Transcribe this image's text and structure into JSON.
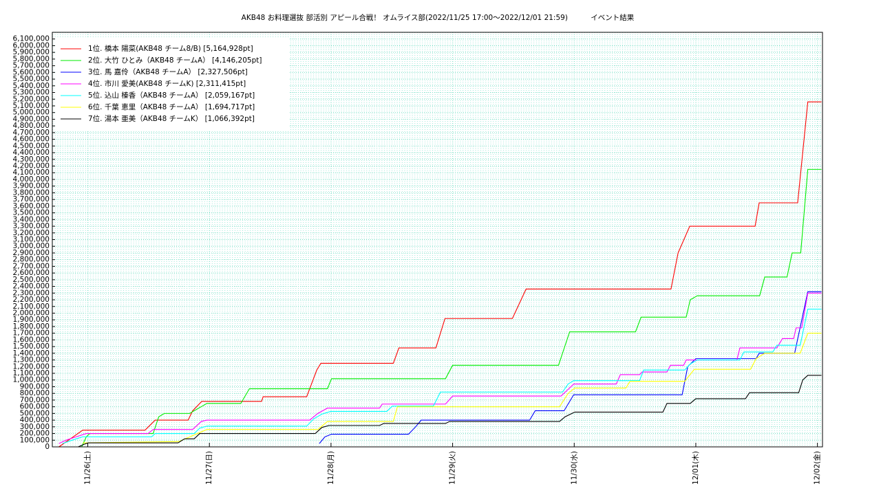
{
  "chart_data": {
    "type": "line",
    "title": "AKB48 お料理選抜 部活別 アピール合戦！ オムライス部(2022/11/25 17:00～2022/12/01 21:59)          イベント結果",
    "xlim": [
      0,
      152
    ],
    "xticks": [
      {
        "value": 7,
        "label": "11/26(土)"
      },
      {
        "value": 31,
        "label": "11/27(日)"
      },
      {
        "value": 55,
        "label": "11/28(月)"
      },
      {
        "value": 79,
        "label": "11/29(火)"
      },
      {
        "value": 103,
        "label": "11/30(水)"
      },
      {
        "value": 127,
        "label": "12/01(木)"
      },
      {
        "value": 151,
        "label": "12/02(金)"
      }
    ],
    "ylim": [
      0,
      6200000
    ],
    "yticks": [
      0,
      {
        "value": 100000,
        "label": "100,000"
      },
      {
        "value": 200000,
        "label": "200,000"
      },
      {
        "value": 300000,
        "label": "300,000"
      },
      {
        "value": 400000,
        "label": "400,000"
      },
      {
        "value": 500000,
        "label": "500,000"
      },
      {
        "value": 600000,
        "label": "600,000"
      },
      {
        "value": 700000,
        "label": "700,000"
      },
      {
        "value": 800000,
        "label": "800,000"
      },
      {
        "value": 900000,
        "label": "900,000"
      },
      {
        "value": 1000000,
        "label": "1,000,000"
      },
      {
        "value": 1100000,
        "label": "1,100,000"
      },
      {
        "value": 1200000,
        "label": "1,200,000"
      },
      {
        "value": 1300000,
        "label": "1,300,000"
      },
      {
        "value": 1400000,
        "label": "1,400,000"
      },
      {
        "value": 1500000,
        "label": "1,500,000"
      },
      {
        "value": 1600000,
        "label": "1,600,000"
      },
      {
        "value": 1700000,
        "label": "1,700,000"
      },
      {
        "value": 1800000,
        "label": "1,800,000"
      },
      {
        "value": 1900000,
        "label": "1,900,000"
      },
      {
        "value": 2000000,
        "label": "2,000,000"
      },
      {
        "value": 2100000,
        "label": "2,100,000"
      },
      {
        "value": 2200000,
        "label": "2,200,000"
      },
      {
        "value": 2300000,
        "label": "2,300,000"
      },
      {
        "value": 2400000,
        "label": "2,400,000"
      },
      {
        "value": 2500000,
        "label": "2,500,000"
      },
      {
        "value": 2600000,
        "label": "2,600,000"
      },
      {
        "value": 2700000,
        "label": "2,700,000"
      },
      {
        "value": 2800000,
        "label": "2,800,000"
      },
      {
        "value": 2900000,
        "label": "2,900,000"
      },
      {
        "value": 3000000,
        "label": "3,000,000"
      },
      {
        "value": 3100000,
        "label": "3,100,000"
      },
      {
        "value": 3200000,
        "label": "3,200,000"
      },
      {
        "value": 3300000,
        "label": "3,300,000"
      },
      {
        "value": 3400000,
        "label": "3,400,000"
      },
      {
        "value": 3500000,
        "label": "3,500,000"
      },
      {
        "value": 3600000,
        "label": "3,600,000"
      },
      {
        "value": 3700000,
        "label": "3,700,000"
      },
      {
        "value": 3800000,
        "label": "3,800,000"
      },
      {
        "value": 3900000,
        "label": "3,900,000"
      },
      {
        "value": 4000000,
        "label": "4,000,000"
      },
      {
        "value": 4100000,
        "label": "4,100,000"
      },
      {
        "value": 4200000,
        "label": "4,200,000"
      },
      {
        "value": 4300000,
        "label": "4,300,000"
      },
      {
        "value": 4400000,
        "label": "4,400,000"
      },
      {
        "value": 4500000,
        "label": "4,500,000"
      },
      {
        "value": 4600000,
        "label": "4,600,000"
      },
      {
        "value": 4700000,
        "label": "4,700,000"
      },
      {
        "value": 4800000,
        "label": "4,800,000"
      },
      {
        "value": 4900000,
        "label": "4,900,000"
      },
      {
        "value": 5000000,
        "label": "5,000,000"
      },
      {
        "value": 5100000,
        "label": "5,100,000"
      },
      {
        "value": 5200000,
        "label": "5,200,000"
      },
      {
        "value": 5300000,
        "label": "5,300,000"
      },
      {
        "value": 5400000,
        "label": "5,400,000"
      },
      {
        "value": 5500000,
        "label": "5,500,000"
      },
      {
        "value": 5600000,
        "label": "5,600,000"
      },
      {
        "value": 5700000,
        "label": "5,700,000"
      },
      {
        "value": 5800000,
        "label": "5,800,000"
      },
      {
        "value": 5900000,
        "label": "5,900,000"
      },
      {
        "value": 6000000,
        "label": "6,000,000"
      },
      {
        "value": 6100000,
        "label": "6,100,000"
      }
    ],
    "grid": true,
    "legend": "top-left",
    "series": [
      {
        "name": "1位. 橋本 陽菜(AKB48 チーム8/B) [5,164,928pt]",
        "color": "#ff0000",
        "x": [
          1.3,
          6.0,
          18.3,
          20.3,
          26.8,
          27.7,
          29.5,
          41.3,
          41.6,
          50.2,
          52.2,
          53.0,
          67.3,
          68.4,
          75.7,
          77.5,
          90.8,
          93.5,
          122.1,
          123.5,
          125.8,
          138.7,
          139.5,
          147.1,
          149.1,
          151.8
        ],
        "values": [
          0,
          250000,
          250000,
          400000,
          400000,
          540000,
          680000,
          680000,
          750000,
          750000,
          1150000,
          1250000,
          1250000,
          1480000,
          1480000,
          1920000,
          1920000,
          2360000,
          2360000,
          2900000,
          3300000,
          3300000,
          3650000,
          3650000,
          5160000,
          5160000
        ]
      },
      {
        "name": "2位. 大竹 ひとみ（AKB48 チームA） [4,146,205pt]",
        "color": "#00ee00",
        "x": [
          5.8,
          6.7,
          7.4,
          19.9,
          21.0,
          22.1,
          27.1,
          30.5,
          37.2,
          38.9,
          54.3,
          55.1,
          77.6,
          79.0,
          99.9,
          102.1,
          115.1,
          116.2,
          125.1,
          125.9,
          127.3,
          139.6,
          140.6,
          145.0,
          146.0,
          147.7,
          149.1,
          151.8
        ],
        "values": [
          0,
          150000,
          200000,
          200000,
          450000,
          500000,
          500000,
          650000,
          650000,
          870000,
          870000,
          1020000,
          1020000,
          1220000,
          1220000,
          1720000,
          1720000,
          1940000,
          1940000,
          2200000,
          2260000,
          2260000,
          2540000,
          2540000,
          2900000,
          2900000,
          4150000,
          4150000
        ]
      },
      {
        "name": "3位. 馬 嘉伶（AKB48 チームA） [2,327,506pt]",
        "color": "#0000ff",
        "x": [
          52.7,
          53.8,
          55.1,
          70.3,
          71.7,
          72.8,
          94.2,
          95.3,
          101.0,
          102.9,
          124.3,
          125.4,
          127.0,
          138.9,
          139.5,
          146.5,
          149.1,
          151.8
        ],
        "values": [
          50000,
          150000,
          190000,
          190000,
          300000,
          400000,
          400000,
          540000,
          540000,
          780000,
          780000,
          1200000,
          1320000,
          1320000,
          1400000,
          1400000,
          2320000,
          2320000
        ]
      },
      {
        "name": "4位. 市川 愛美(AKB48 チームK) [2,311,415pt]",
        "color": "#ff00ff",
        "x": [
          1.3,
          2.7,
          4.7,
          6.7,
          18.9,
          19.9,
          27.7,
          29.4,
          30.5,
          50.8,
          52.4,
          54.3,
          64.6,
          65.1,
          77.6,
          79.0,
          100.4,
          101.8,
          102.9,
          111.3,
          112.1,
          115.9,
          116.4,
          121.3,
          122.0,
          124.6,
          125.1,
          135.1,
          135.7,
          143.0,
          144.1,
          146.3,
          146.8,
          147.9,
          149.1,
          151.8
        ],
        "values": [
          50000,
          100000,
          150000,
          200000,
          200000,
          260000,
          260000,
          380000,
          400000,
          400000,
          500000,
          580000,
          580000,
          640000,
          640000,
          760000,
          760000,
          860000,
          940000,
          940000,
          1080000,
          1080000,
          1120000,
          1120000,
          1220000,
          1220000,
          1300000,
          1300000,
          1480000,
          1480000,
          1620000,
          1620000,
          1780000,
          1780000,
          2300000,
          2300000
        ]
      },
      {
        "name": "5位. 込山 榛香（AKB48 チームA） [2,059,167pt]",
        "color": "#00ffff",
        "x": [
          2.0,
          4.7,
          6.0,
          19.6,
          20.3,
          28.0,
          29.1,
          30.5,
          50.2,
          51.6,
          53.2,
          54.9,
          66.0,
          67.1,
          75.2,
          76.6,
          100.7,
          101.8,
          102.9,
          115.9,
          116.7,
          124.8,
          125.9,
          127.3,
          135.7,
          136.5,
          142.2,
          143.0,
          147.6,
          149.1,
          151.8
        ],
        "values": [
          50000,
          120000,
          150000,
          150000,
          200000,
          200000,
          280000,
          310000,
          310000,
          420000,
          490000,
          530000,
          530000,
          610000,
          610000,
          820000,
          820000,
          940000,
          990000,
          990000,
          1150000,
          1150000,
          1240000,
          1300000,
          1300000,
          1420000,
          1420000,
          1520000,
          1520000,
          2060000,
          2060000
        ]
      },
      {
        "name": "6位. 千葉 恵里（AKB48 チームA） [1,694,717pt]",
        "color": "#ffff00",
        "x": [
          6.0,
          25.0,
          30.5,
          52.4,
          54.3,
          67.3,
          68.1,
          100.1,
          101.8,
          103.1,
          113.2,
          114.0,
          124.8,
          126.7,
          137.8,
          138.9,
          140.6,
          147.6,
          149.1,
          151.8
        ],
        "values": [
          60000,
          80000,
          260000,
          260000,
          380000,
          380000,
          600000,
          600000,
          800000,
          880000,
          880000,
          980000,
          980000,
          1160000,
          1160000,
          1320000,
          1400000,
          1400000,
          1700000,
          1700000
        ]
      },
      {
        "name": "7位. 湯本 亜美（AKB48 チームK） [1,066,392pt]",
        "color": "#000000",
        "x": [
          5.1,
          6.3,
          7.1,
          24.8,
          26.1,
          28.0,
          29.1,
          51.9,
          53.2,
          54.6,
          64.6,
          65.4,
          77.6,
          78.4,
          100.1,
          101.2,
          103.1,
          120.5,
          121.3,
          125.9,
          127.0,
          136.8,
          137.6,
          147.3,
          148.1,
          149.1,
          151.8
        ],
        "values": [
          0,
          40000,
          60000,
          60000,
          120000,
          120000,
          200000,
          200000,
          290000,
          320000,
          320000,
          350000,
          350000,
          380000,
          380000,
          450000,
          520000,
          520000,
          650000,
          650000,
          720000,
          720000,
          810000,
          810000,
          1000000,
          1070000,
          1070000
        ]
      }
    ]
  }
}
